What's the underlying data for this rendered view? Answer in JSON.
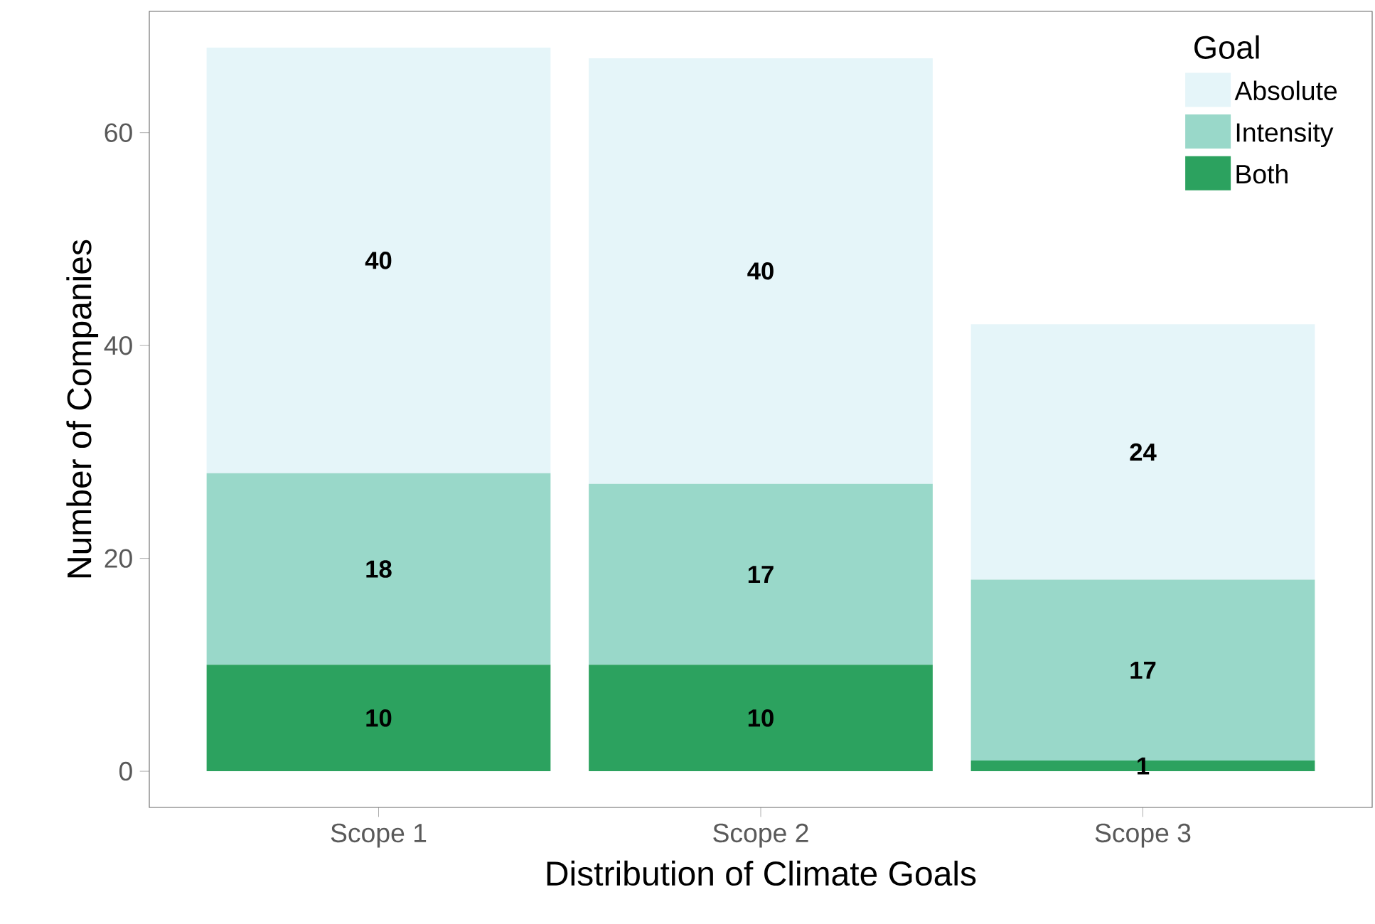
{
  "chart_data": {
    "type": "bar",
    "stacked": true,
    "xlabel": "Distribution of Climate Goals",
    "ylabel": "Number of Companies",
    "categories": [
      "Scope 1",
      "Scope 2",
      "Scope 3"
    ],
    "series": [
      {
        "name": "Both",
        "color": "#2ca25f",
        "values": [
          10,
          10,
          1
        ]
      },
      {
        "name": "Intensity",
        "color": "#99d8c9",
        "values": [
          18,
          17,
          17
        ]
      },
      {
        "name": "Absolute",
        "color": "#e5f5f9",
        "values": [
          40,
          40,
          24
        ]
      }
    ],
    "ylim": [
      -3.4,
      71.4
    ],
    "yticks": [
      0,
      20,
      40,
      60
    ],
    "legend": "top right",
    "legend_title": "Goal",
    "data_labels": true
  }
}
